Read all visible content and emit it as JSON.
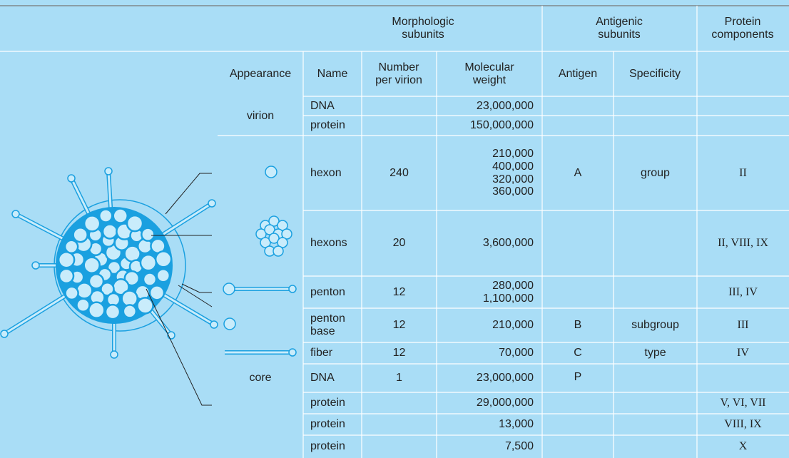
{
  "header": {
    "morphologic": "Morphologic subunits",
    "antigenic": "Antigenic subunits",
    "protein": "Protein components",
    "appearance": "Appearance",
    "name": "Name",
    "number": "Number per virion",
    "weight": "Molecular weight",
    "antigen": "Antigen",
    "specificity": "Specificity"
  },
  "rows": [
    {
      "appearance": "virion",
      "name": "DNA",
      "weight": [
        "23,000,000"
      ]
    },
    {
      "name": "protein",
      "weight": [
        "150,000,000"
      ]
    },
    {
      "name": "hexon",
      "number": 240,
      "weight": [
        "210,000",
        "400,000",
        "320,000",
        "360,000"
      ],
      "antigen": "A",
      "specificity": "group",
      "proteins": "II"
    },
    {
      "name": "hexons",
      "number": 20,
      "weight": [
        "3,600,000"
      ],
      "proteins": "II, VIII, IX"
    },
    {
      "name": "penton",
      "number": 12,
      "weight": [
        "280,000",
        "1,100,000"
      ],
      "proteins": "III, IV"
    },
    {
      "name": "penton base",
      "number": 12,
      "weight": [
        "210,000"
      ],
      "antigen": "B",
      "specificity": "subgroup",
      "proteins": "III"
    },
    {
      "name": "fiber",
      "number": 12,
      "weight": [
        "70,000"
      ],
      "antigen": "C",
      "specificity": "type",
      "proteins": "IV"
    },
    {
      "appearance": "core",
      "name": "DNA",
      "number": 1,
      "weight": [
        "23,000,000"
      ],
      "antigen": "P"
    },
    {
      "name": "protein",
      "weight": [
        "29,000,000"
      ],
      "proteins": "V, VI, VII"
    },
    {
      "name": "protein",
      "weight": [
        "13,000"
      ],
      "proteins": "VIII, IX"
    },
    {
      "name": "protein",
      "weight": [
        "7,500"
      ],
      "proteins": "X"
    }
  ]
}
